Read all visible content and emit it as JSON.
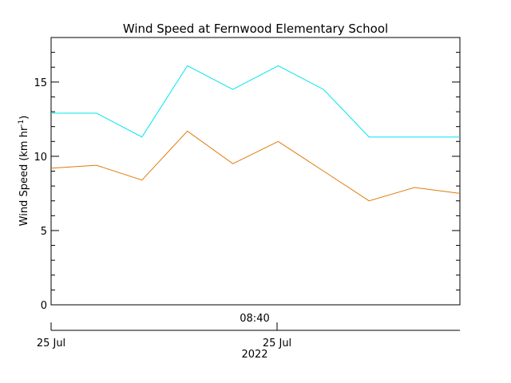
{
  "chart_data": {
    "type": "line",
    "title": "Wind Speed at Fernwood Elementary School",
    "ylabel": "Wind Speed (km hr",
    "ylabel_superscript": "-1",
    "ylabel_close": ")",
    "ylim": [
      0,
      18
    ],
    "yticks": [
      0,
      5,
      10,
      15
    ],
    "ytick_labels": [
      "0",
      "5",
      "10",
      "15"
    ],
    "y_minor_step": 1,
    "x_time_labels": [
      "08:40"
    ],
    "x_date_labels": [
      "25 Jul",
      "25 Jul"
    ],
    "x_year_label": "2022",
    "grid": false,
    "series": [
      {
        "color": "#00e5ee",
        "values": [
          12.9,
          12.9,
          11.3,
          16.1,
          14.5,
          16.1,
          14.5,
          11.3,
          11.3,
          11.3
        ]
      },
      {
        "color": "#e07b0a",
        "values": [
          9.2,
          9.4,
          8.4,
          11.7,
          9.5,
          11.0,
          9.0,
          7.0,
          7.9,
          7.5
        ]
      }
    ]
  }
}
